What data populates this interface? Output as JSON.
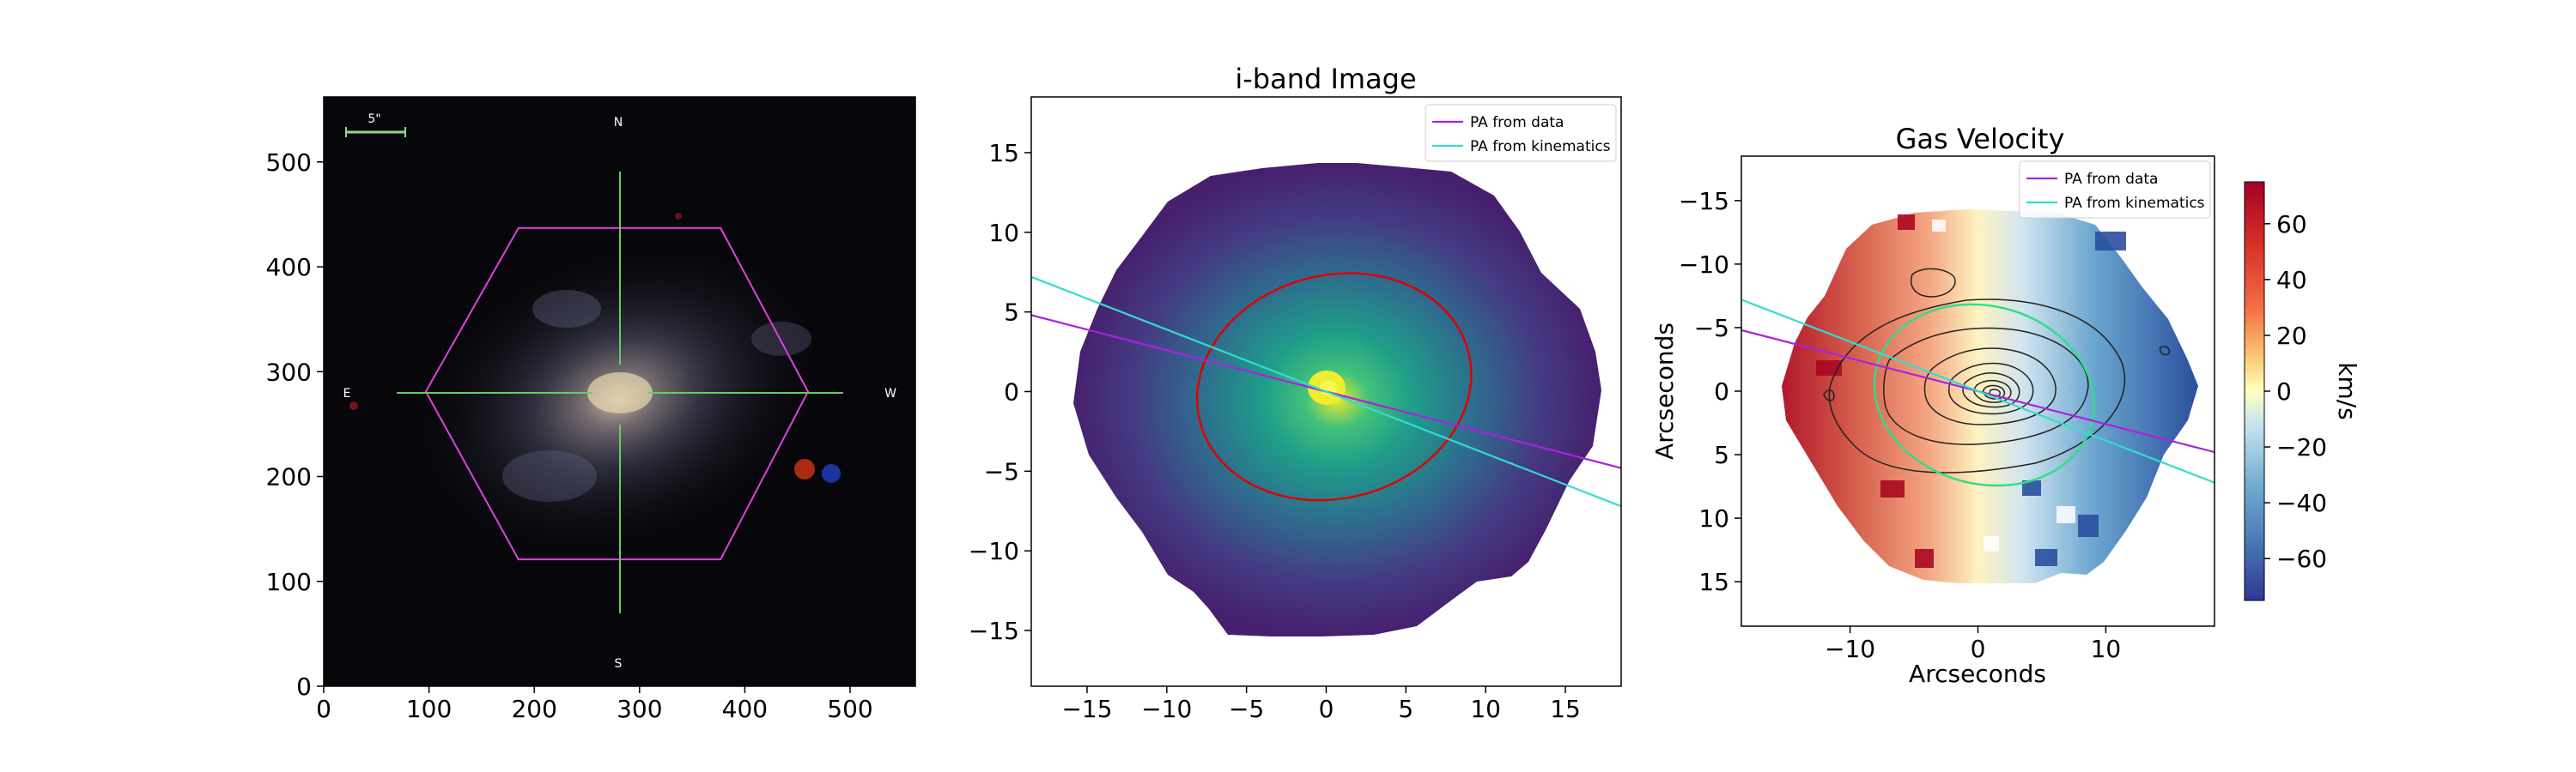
{
  "chart_data": [
    {
      "type": "image",
      "panel": "sdss-image",
      "title": "",
      "xlim": [
        0,
        562
      ],
      "ylim": [
        562,
        0
      ],
      "xticks": [
        0,
        100,
        200,
        300,
        400,
        500
      ],
      "yticks": [
        0,
        100,
        200,
        300,
        400,
        500
      ],
      "scalebar_label": "5\"",
      "compass": {
        "north": "N",
        "south": "S",
        "east": "E",
        "west": "W"
      },
      "ifu_hexagon": [
        [
          97,
          281
        ],
        [
          185,
          121
        ],
        [
          377,
          121
        ],
        [
          460,
          281
        ],
        [
          377,
          437
        ],
        [
          185,
          437
        ]
      ],
      "crosshair_center": [
        281,
        281
      ],
      "colors": {
        "hexagon": "#e040e0",
        "crosshair": "#66cc66",
        "scalebar": "#88dd88"
      }
    },
    {
      "type": "heatmap",
      "panel": "i-band",
      "title": "i-band Image",
      "xlabel": "",
      "ylabel": "",
      "xlim": [
        -18.5,
        18.5
      ],
      "ylim": [
        18.5,
        -18.5
      ],
      "xticks": [
        -15,
        -10,
        -5,
        0,
        5,
        10,
        15
      ],
      "yticks": [
        -15,
        -10,
        -5,
        0,
        5,
        10,
        15
      ],
      "ellipse": {
        "center": [
          0.5,
          0.3
        ],
        "semi_major": 8.7,
        "semi_minor": 7.0,
        "angle_deg": -15,
        "color": "#dd0000"
      },
      "series": [
        {
          "name": "PA from data",
          "color": "#aa22dd",
          "x": [
            -18.5,
            18.5
          ],
          "y": [
            4.8,
            -4.8
          ]
        },
        {
          "name": "PA from kinematics",
          "color": "#33ddcc",
          "x": [
            -18.5,
            18.5
          ],
          "y": [
            7.2,
            -7.2
          ]
        }
      ],
      "legend_position": "upper right"
    },
    {
      "type": "heatmap",
      "panel": "gas-velocity",
      "title": "Gas Velocity",
      "xlabel": "Arcseconds",
      "ylabel": "Arcseconds",
      "xlim": [
        -18.5,
        18.5
      ],
      "ylim": [
        -18.5,
        18.5
      ],
      "xticks": [
        -10,
        0,
        10
      ],
      "yticks": [
        -15,
        -10,
        -5,
        0,
        5,
        10,
        15
      ],
      "colorbar": {
        "label": "km/s",
        "min": -75,
        "max": 75,
        "ticks": [
          60,
          40,
          20,
          0,
          -20,
          -40,
          -60
        ]
      },
      "ellipse": {
        "center": [
          0.5,
          0.3
        ],
        "semi_major": 8.7,
        "semi_minor": 7.0,
        "angle_deg": 15,
        "color": "#33dd88"
      },
      "series": [
        {
          "name": "PA from data",
          "color": "#aa22dd",
          "x": [
            -18.5,
            18.5
          ],
          "y": [
            -4.8,
            4.8
          ]
        },
        {
          "name": "PA from kinematics",
          "color": "#33ddcc",
          "x": [
            -18.5,
            18.5
          ],
          "y": [
            -7.2,
            7.2
          ]
        }
      ],
      "legend_position": "upper right"
    }
  ]
}
